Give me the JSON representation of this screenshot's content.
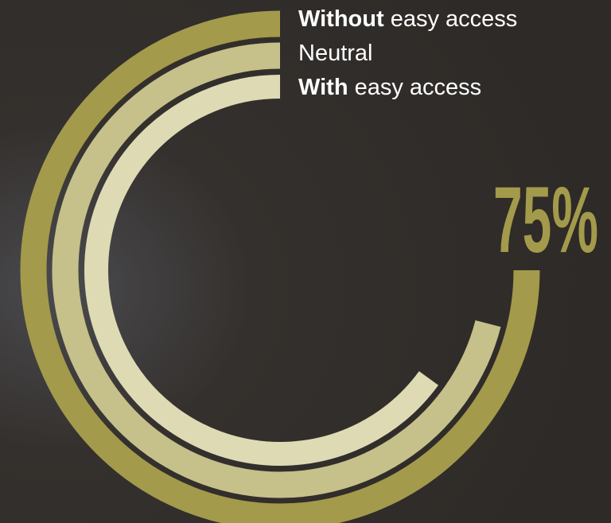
{
  "chart_data": {
    "type": "radial_bar",
    "ylim": [
      0,
      100
    ],
    "series": [
      {
        "name": "Without easy access",
        "color": "#a39a4b",
        "values": [
          75
        ],
        "value_labels": [
          "75%"
        ]
      },
      {
        "name": "Neutral",
        "color": "#c6c08a",
        "values": [
          71
        ]
      },
      {
        "name": "With easy access",
        "color": "#dedab4",
        "values": [
          65
        ]
      }
    ]
  }
}
